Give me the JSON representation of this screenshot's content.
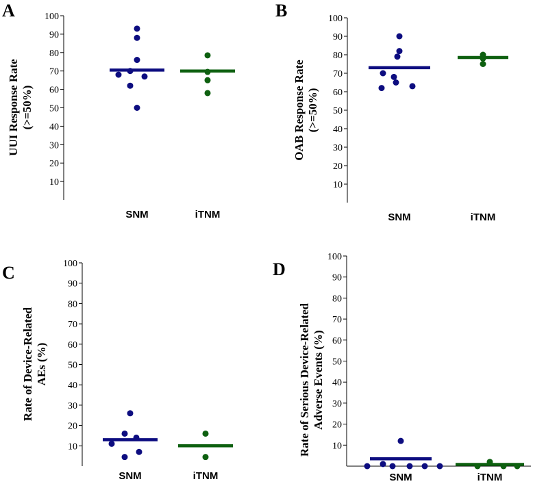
{
  "colors": {
    "snm": "#0d0d80",
    "itnm": "#0e6010",
    "axis": "#000000"
  },
  "chart_data": [
    {
      "type": "scatter",
      "panel": "A",
      "ylabel_lines": [
        "UUI Response Rate",
        "(>=50%)"
      ],
      "ylim": [
        0,
        100
      ],
      "yticks": [
        10,
        20,
        30,
        40,
        50,
        60,
        70,
        80,
        90,
        100
      ],
      "categories": [
        "SNM",
        "iTNM"
      ],
      "series": [
        {
          "name": "SNM",
          "points": [
            93,
            88,
            76,
            70,
            68,
            67,
            62,
            50
          ],
          "mean": 70.5
        },
        {
          "name": "iTNM",
          "points": [
            78.5,
            69.5,
            65,
            58
          ],
          "mean": 70.0
        }
      ]
    },
    {
      "type": "scatter",
      "panel": "B",
      "ylabel_lines": [
        "OAB Response Rate",
        "(>=50%)"
      ],
      "ylim": [
        0,
        100
      ],
      "yticks": [
        10,
        20,
        30,
        40,
        50,
        60,
        70,
        80,
        90,
        100
      ],
      "categories": [
        "SNM",
        "iTNM"
      ],
      "series": [
        {
          "name": "SNM",
          "points": [
            90,
            82,
            79,
            70,
            68,
            65,
            63,
            62
          ],
          "mean": 73
        },
        {
          "name": "iTNM",
          "points": [
            80,
            78,
            75
          ],
          "mean": 78.5
        }
      ]
    },
    {
      "type": "scatter",
      "panel": "C",
      "ylabel_lines": [
        "Rate of Device-Related",
        "AEs (%)"
      ],
      "ylim": [
        0,
        100
      ],
      "yticks": [
        10,
        20,
        30,
        40,
        50,
        60,
        70,
        80,
        90,
        100
      ],
      "categories": [
        "SNM",
        "iTNM"
      ],
      "series": [
        {
          "name": "SNM",
          "points": [
            26,
            16,
            14,
            11,
            7,
            4.5
          ],
          "mean": 13
        },
        {
          "name": "iTNM",
          "points": [
            16,
            4.5
          ],
          "mean": 10
        }
      ]
    },
    {
      "type": "scatter",
      "panel": "D",
      "ylabel_lines": [
        "Rate of  Serious Device-Related",
        "Adverse  Events (%)"
      ],
      "ylim": [
        0,
        100
      ],
      "yticks": [
        10,
        20,
        30,
        40,
        50,
        60,
        70,
        80,
        90,
        100
      ],
      "categories": [
        "SNM",
        "iTNM"
      ],
      "series": [
        {
          "name": "SNM",
          "points": [
            12,
            1,
            0,
            0,
            0,
            0,
            0
          ],
          "mean": 3.5
        },
        {
          "name": "iTNM",
          "points": [
            2,
            0,
            0,
            0
          ],
          "mean": 0.8
        }
      ]
    }
  ]
}
